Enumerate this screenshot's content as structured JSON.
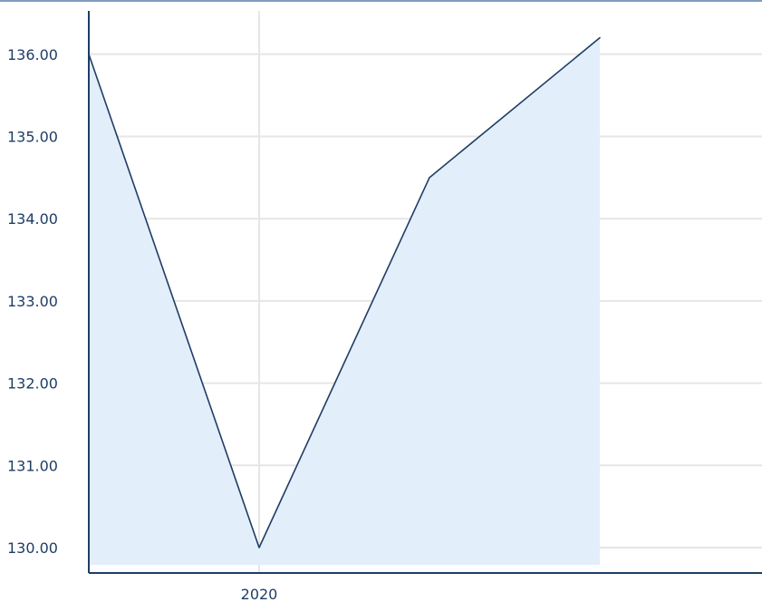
{
  "chart_data": {
    "type": "area",
    "title": "",
    "xlabel": "",
    "ylabel": "",
    "x_tick_labels": [
      {
        "x": 2020,
        "label": "2020"
      }
    ],
    "y_tick_labels": [
      {
        "value": 130,
        "label": "130.00"
      },
      {
        "value": 131,
        "label": "131.00"
      },
      {
        "value": 132,
        "label": "132.00"
      },
      {
        "value": 133,
        "label": "133.00"
      },
      {
        "value": 134,
        "label": "134.00"
      },
      {
        "value": 135,
        "label": "135.00"
      },
      {
        "value": 136,
        "label": "136.00"
      }
    ],
    "xlim": [
      2019,
      2023
    ],
    "ylim": [
      129.7,
      136.5
    ],
    "grid": true,
    "x": [
      2019,
      2020,
      2021,
      2022
    ],
    "series": [
      {
        "values": [
          136.0,
          130.0,
          134.5,
          136.2
        ]
      }
    ],
    "colors": {
      "line": "#1f3d66",
      "fill": "#e2eef9",
      "axis": "#1f3d66",
      "grid": "#e6e6e6",
      "frame": "#7f9dbd"
    }
  }
}
